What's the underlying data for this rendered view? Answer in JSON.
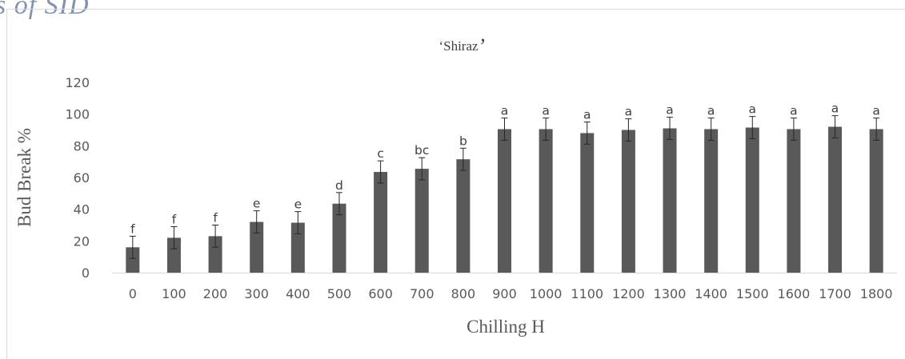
{
  "watermark": "s of SID",
  "chart_data": {
    "type": "bar",
    "title": "‘Shiraz’",
    "xlabel": "Chilling H",
    "ylabel": "Bud Break %",
    "ylim": [
      0,
      120
    ],
    "yticks": [
      "0",
      "20",
      "40",
      "60",
      "80",
      "100",
      "120"
    ],
    "grid": false,
    "legend": "none",
    "bar_color": "#595959",
    "categories": [
      "0",
      "100",
      "200",
      "300",
      "400",
      "500",
      "600",
      "700",
      "800",
      "900",
      "1000",
      "1100",
      "1200",
      "1300",
      "1400",
      "1500",
      "1600",
      "1700",
      "1800"
    ],
    "values": [
      16,
      22,
      23,
      32,
      31.5,
      43.5,
      63.5,
      65.5,
      71.5,
      90.5,
      90.5,
      88,
      90,
      91,
      90.5,
      91.5,
      90.5,
      92,
      90.5
    ],
    "errors": [
      7,
      7,
      7,
      7,
      7,
      7,
      7,
      7,
      7,
      7,
      7,
      7,
      7,
      7,
      7,
      7,
      7,
      7,
      7
    ],
    "significance_letters": [
      "f",
      "f",
      "f",
      "e",
      "e",
      "d",
      "c",
      "bc",
      "b",
      "a",
      "a",
      "a",
      "a",
      "a",
      "a",
      "a",
      "a",
      "a",
      "a"
    ]
  }
}
